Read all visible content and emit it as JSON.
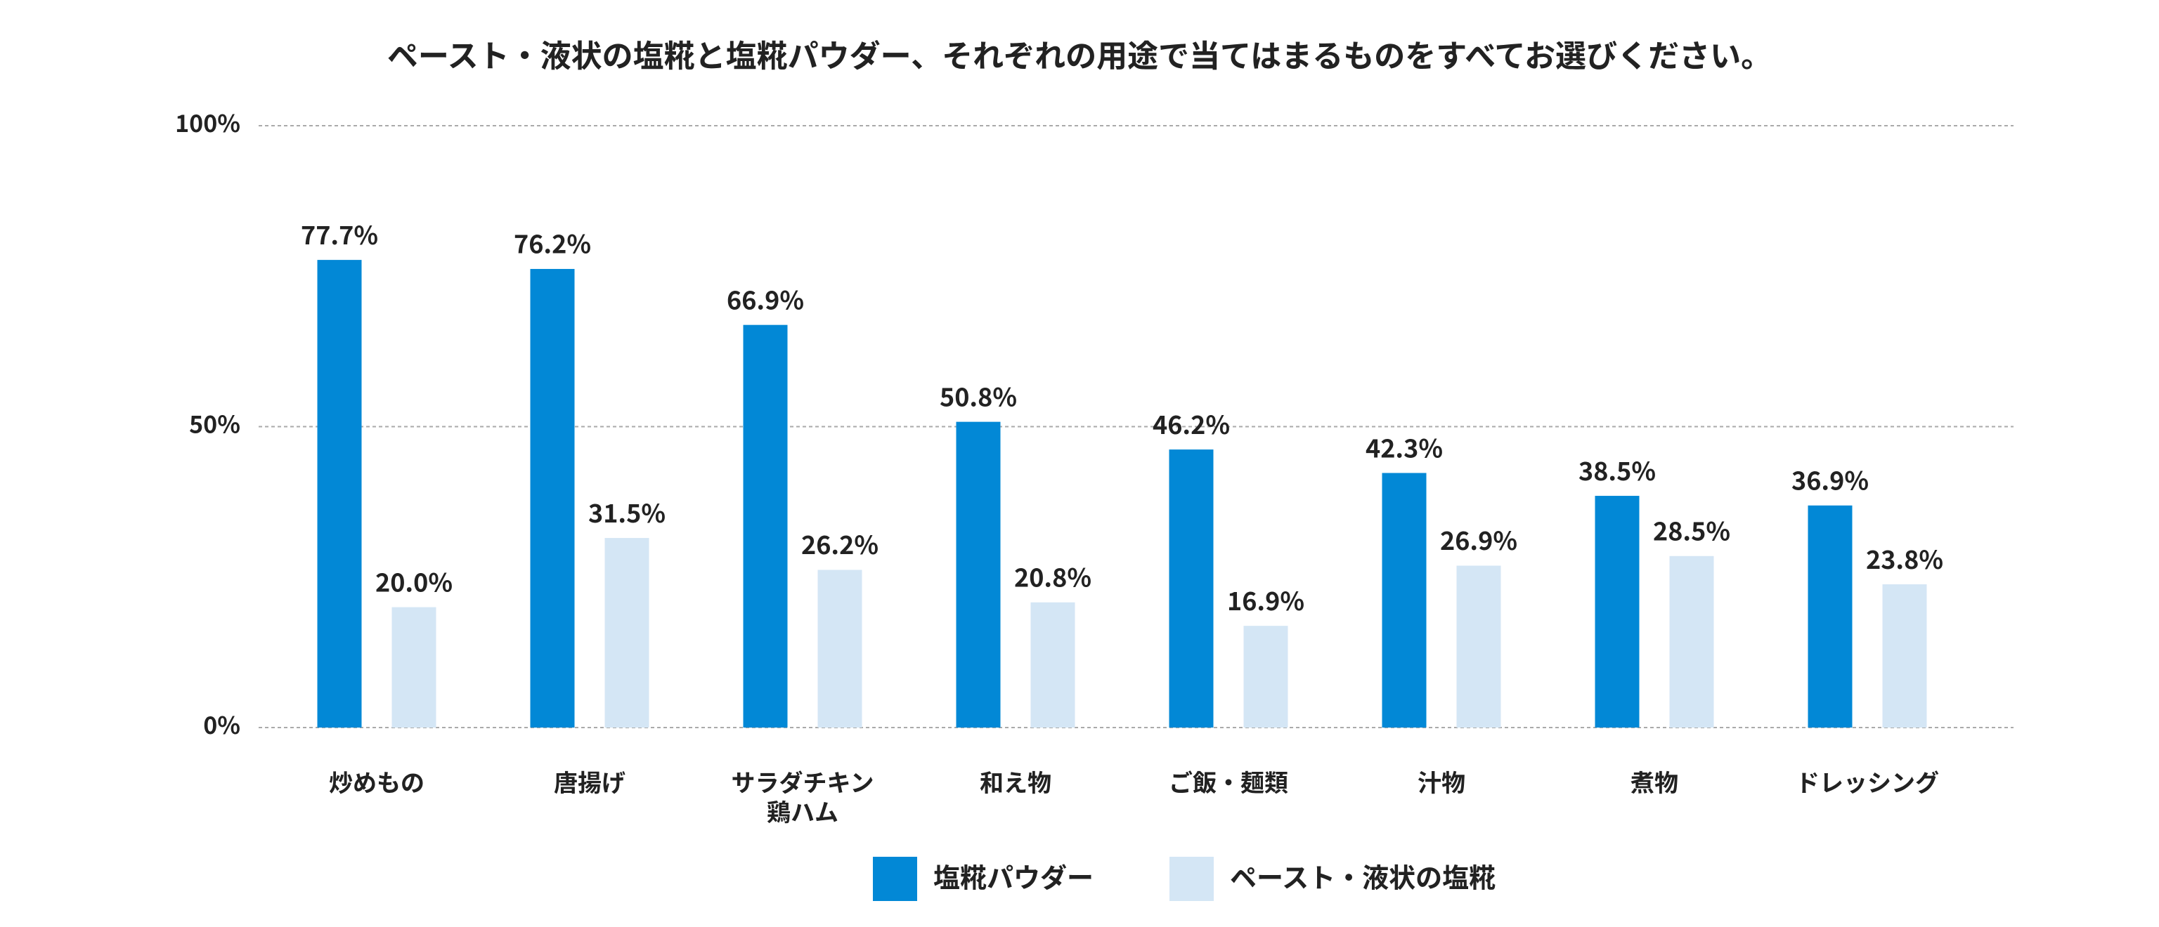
{
  "chart_data": {
    "type": "bar",
    "title": "ペースト・液状の塩糀と塩糀パウダー、それぞれの用途で当てはまるものをすべてお選びください。",
    "categories": [
      "炒めもの",
      "唐揚げ",
      "サラダチキン\n鶏ハム",
      "和え物",
      "ご飯・麺類",
      "汁物",
      "煮物",
      "ドレッシング"
    ],
    "series": [
      {
        "name": "塩糀パウダー",
        "color": "#0288d6",
        "values": [
          77.7,
          76.2,
          66.9,
          50.8,
          46.2,
          42.3,
          38.5,
          36.9
        ],
        "value_labels": [
          "77.7%",
          "76.2%",
          "66.9%",
          "50.8%",
          "46.2%",
          "42.3%",
          "38.5%",
          "36.9%"
        ]
      },
      {
        "name": "ペースト・液状の塩糀",
        "color": "#d4e6f5",
        "values": [
          20.0,
          31.5,
          26.2,
          20.8,
          16.9,
          26.9,
          28.5,
          23.8
        ],
        "value_labels": [
          "20.0%",
          "31.5%",
          "26.2%",
          "20.8%",
          "16.9%",
          "26.9%",
          "28.5%",
          "23.8%"
        ]
      }
    ],
    "ylim": [
      0,
      100
    ],
    "yticks": [
      {
        "value": 0,
        "label": "0%"
      },
      {
        "value": 50,
        "label": "50%"
      },
      {
        "value": 100,
        "label": "100%"
      }
    ],
    "grid": true,
    "legend": "bottom"
  }
}
